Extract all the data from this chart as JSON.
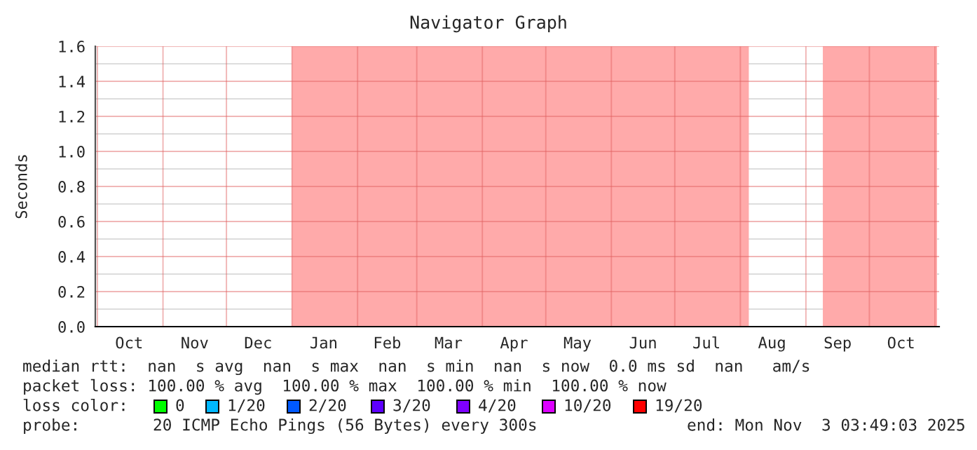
{
  "chart_data": {
    "type": "area",
    "title": "Navigator Graph",
    "ylabel": "Seconds",
    "xlim": [
      "2024-09-30",
      "2025-11-03"
    ],
    "xticks": [
      {
        "value": "2024-10-01",
        "label": null
      },
      {
        "value": "2024-10-16",
        "label": "Oct"
      },
      {
        "value": "2024-11-01",
        "label": null
      },
      {
        "value": "2024-11-16",
        "label": "Nov"
      },
      {
        "value": "2024-12-01",
        "label": null
      },
      {
        "value": "2024-12-16",
        "label": "Dec"
      },
      {
        "value": "2025-01-01",
        "label": null
      },
      {
        "value": "2025-01-16",
        "label": "Jan"
      },
      {
        "value": "2025-02-01",
        "label": null
      },
      {
        "value": "2025-02-15",
        "label": "Feb"
      },
      {
        "value": "2025-03-01",
        "label": null
      },
      {
        "value": "2025-03-16",
        "label": "Mar"
      },
      {
        "value": "2025-04-01",
        "label": null
      },
      {
        "value": "2025-04-16",
        "label": "Apr"
      },
      {
        "value": "2025-05-01",
        "label": null
      },
      {
        "value": "2025-05-16",
        "label": "May"
      },
      {
        "value": "2025-06-01",
        "label": null
      },
      {
        "value": "2025-06-16",
        "label": "Jun"
      },
      {
        "value": "2025-07-01",
        "label": null
      },
      {
        "value": "2025-07-16",
        "label": "Jul"
      },
      {
        "value": "2025-08-01",
        "label": null
      },
      {
        "value": "2025-08-16",
        "label": "Aug"
      },
      {
        "value": "2025-09-01",
        "label": null
      },
      {
        "value": "2025-09-16",
        "label": "Sep"
      },
      {
        "value": "2025-10-01",
        "label": null
      },
      {
        "value": "2025-10-16",
        "label": "Oct"
      },
      {
        "value": "2025-11-01",
        "label": null
      }
    ],
    "ylim": [
      0,
      1.6
    ],
    "yticks": [
      {
        "value": 0,
        "label": "0.0"
      },
      {
        "value": 0.1,
        "label": null
      },
      {
        "value": 0.2,
        "label": "0.2"
      },
      {
        "value": 0.3,
        "label": null
      },
      {
        "value": 0.4,
        "label": "0.4"
      },
      {
        "value": 0.5,
        "label": null
      },
      {
        "value": 0.6,
        "label": "0.6"
      },
      {
        "value": 0.7,
        "label": null
      },
      {
        "value": 0.8,
        "label": "0.8"
      },
      {
        "value": 0.9,
        "label": null
      },
      {
        "value": 1.0,
        "label": "1.0"
      },
      {
        "value": 1.1,
        "label": null
      },
      {
        "value": 1.2,
        "label": "1.2"
      },
      {
        "value": 1.3,
        "label": null
      },
      {
        "value": 1.4,
        "label": "1.4"
      },
      {
        "value": 1.5,
        "label": null
      },
      {
        "value": 1.6,
        "label": "1.6"
      }
    ],
    "grid": true,
    "series": [
      {
        "color": "#ffaaaa",
        "x": [
          "2025-01-01",
          "2025-08-05"
        ],
        "values": [
          1.6,
          1.6
        ]
      },
      {
        "color": "#ffaaaa",
        "x": [
          "2025-09-09",
          "2025-11-02"
        ],
        "values": [
          1.6,
          1.6
        ]
      }
    ],
    "annotations": [
      "median rtt:  nan  s avg  nan  s max  nan  s min  nan  s now  0.0 ms sd  nan   am/s",
      "packet loss: 100.00 % avg  100.00 % max  100.00 % min  100.00 % now",
      "loss color:",
      "0",
      "1/20",
      "2/20",
      "3/20",
      "4/20",
      "10/20",
      "19/20",
      "probe:",
      "20 ICMP Echo Pings (56 Bytes) every 300s",
      "end: Mon Nov  3 03:49:03 2025"
    ]
  }
}
